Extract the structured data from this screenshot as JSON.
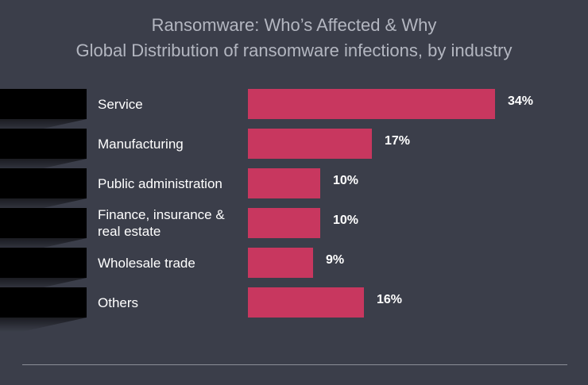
{
  "chart_data": {
    "type": "bar",
    "orientation": "horizontal",
    "title": "Ransomware: Who’s Affected & Why",
    "subtitle": "Global Distribution of ransomware infections, by industry",
    "categories": [
      "Service",
      "Manufacturing",
      "Public administration",
      "Finance, insurance & real estate",
      "Wholesale trade",
      "Others"
    ],
    "values": [
      34,
      17,
      10,
      10,
      9,
      16
    ],
    "value_labels": [
      "34%",
      "17%",
      "10%",
      "10%",
      "9%",
      "16%"
    ],
    "unit": "%",
    "xlim": [
      0,
      34
    ],
    "grid": false,
    "bar_color": "#c8375f",
    "background_color": "#3b3e4a"
  }
}
